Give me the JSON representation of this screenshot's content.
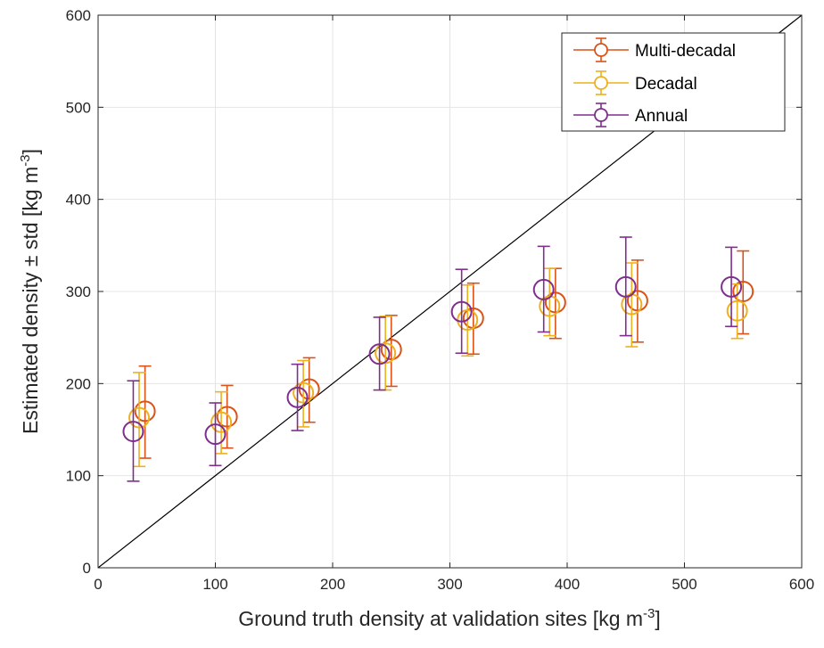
{
  "chart_data": {
    "type": "scatter",
    "xlabel": {
      "main": "Ground truth density at validation sites [kg m",
      "sup": "-3",
      "end": "]"
    },
    "ylabel": {
      "main": "Estimated density ± std [kg m",
      "sup": "-3",
      "end": "]"
    },
    "xlim": [
      0,
      600
    ],
    "ylim": [
      0,
      600
    ],
    "xticks": [
      "0",
      "100",
      "200",
      "300",
      "400",
      "500",
      "600"
    ],
    "yticks": [
      "0",
      "100",
      "200",
      "300",
      "400",
      "500",
      "600"
    ],
    "grid": true,
    "legend_position": "top-right",
    "reference_line": {
      "x": [
        0,
        600
      ],
      "y": [
        0,
        600
      ],
      "color": "#000000"
    },
    "series": [
      {
        "name": "Multi-decadal",
        "color": "#D95319",
        "x": [
          40,
          110,
          180,
          250,
          320,
          390,
          460,
          550
        ],
        "y": [
          170,
          164,
          194,
          237,
          271,
          288,
          290,
          300
        ],
        "err_low": [
          119,
          130,
          158,
          197,
          232,
          249,
          245,
          254
        ],
        "err_high": [
          219,
          198,
          228,
          274,
          309,
          325,
          334,
          344
        ]
      },
      {
        "name": "Decadal",
        "color": "#EDB120",
        "x": [
          35,
          105,
          175,
          245,
          315,
          385,
          455,
          545
        ],
        "y": [
          163,
          158,
          190,
          233,
          269,
          284,
          286,
          279
        ],
        "err_low": [
          110,
          124,
          153,
          193,
          230,
          252,
          240,
          249
        ],
        "err_high": [
          212,
          191,
          225,
          273,
          307,
          325,
          331,
          308
        ]
      },
      {
        "name": "Annual",
        "color": "#7E2F8E",
        "x": [
          30,
          100,
          170,
          240,
          310,
          380,
          450,
          540
        ],
        "y": [
          148,
          145,
          185,
          232,
          278,
          302,
          305,
          305
        ],
        "err_low": [
          94,
          111,
          149,
          193,
          233,
          256,
          252,
          262
        ],
        "err_high": [
          203,
          179,
          221,
          272,
          324,
          349,
          359,
          348
        ]
      }
    ]
  }
}
